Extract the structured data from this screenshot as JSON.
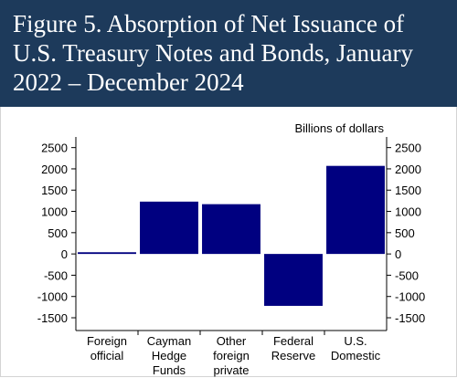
{
  "chart_data": {
    "type": "bar",
    "title": "Figure 5. Absorption of Net Issuance of U.S. Treasury Notes and Bonds, January 2022 – December 2024",
    "y_label": "Billions of dollars",
    "categories": [
      "Foreign\nofficial",
      "Cayman\nHedge\nFunds",
      "Other\nforeign\nprivate",
      "Federal\nReserve",
      "U.S.\nDomestic"
    ],
    "values": [
      40,
      1230,
      1170,
      -1220,
      2070
    ],
    "color": "#000080",
    "ylim": [
      -1800,
      2750
    ],
    "yticks": [
      -1500,
      -1000,
      -500,
      0,
      500,
      1000,
      1500,
      2000,
      2500
    ],
    "right_axis": true,
    "grid": false
  }
}
